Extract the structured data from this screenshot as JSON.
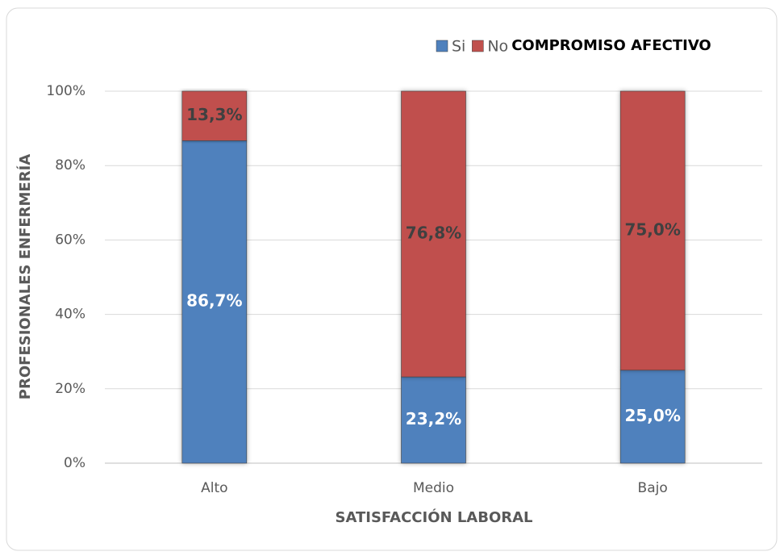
{
  "chart_data": {
    "type": "stacked_bar",
    "categories": [
      "Alto",
      "Medio",
      "Bajo"
    ],
    "series": [
      {
        "name": "Si",
        "color": "#4f81bd",
        "label_color": "#ffffff",
        "values": [
          86.7,
          23.2,
          25.0
        ],
        "value_labels": [
          "86,7%",
          "23,2%",
          "25,0%"
        ]
      },
      {
        "name": "No",
        "color": "#c0504d",
        "label_color": "#404040",
        "values": [
          13.3,
          76.8,
          75.0
        ],
        "value_labels": [
          "13,3%",
          "76,8%",
          "75,0%"
        ]
      }
    ],
    "legend_title": "COMPROMISO AFECTIVO",
    "legend_position": "top-right",
    "x_label": "SATISFACCIÓN LABORAL",
    "y_label": "PROFESIONALES ENFERMERÍA",
    "ylim": [
      0,
      100
    ],
    "yticks": [
      {
        "value": 0,
        "label": "0%"
      },
      {
        "value": 20,
        "label": "20%"
      },
      {
        "value": 40,
        "label": "40%"
      },
      {
        "value": 60,
        "label": "60%"
      },
      {
        "value": 80,
        "label": "80%"
      },
      {
        "value": 100,
        "label": "100%"
      }
    ],
    "grid": true
  }
}
